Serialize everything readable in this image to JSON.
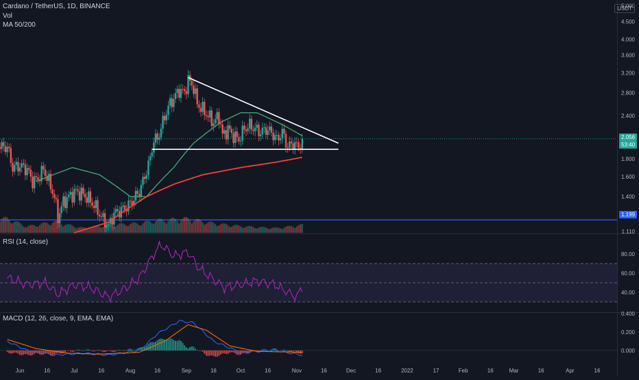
{
  "legend": {
    "symbol": "Cardano / TetherUS, 1D, BINANCE",
    "vol": "Vol",
    "ma": "MA 50/200",
    "rsi": "RSI (14, close)",
    "macd": "MACD (12, 26, close, 9, EMA, EMA)"
  },
  "currency_badge": "USDT",
  "price_tags": {
    "last": "2.056",
    "countdown": "53:40",
    "support": "1.199"
  },
  "colors": {
    "background": "#131722",
    "up": "#26a69a",
    "down": "#ef5350",
    "ma50": "#3fa672",
    "ma200": "#f44336",
    "trendline": "#ffffff",
    "support_line": "#2962ff",
    "rsi_line": "#9c27b0",
    "macd_line": "#2962ff",
    "signal_line": "#ff6d00"
  },
  "chart_data": [
    {
      "type": "candlestick",
      "title": "Cardano / TetherUS, 1D, BINANCE",
      "x_ticks": [
        "Jun",
        "16",
        "Jul",
        "16",
        "Aug",
        "16",
        "Sep",
        "16",
        "Oct",
        "16",
        "Nov",
        "16",
        "Dec",
        "16",
        "2022",
        "17",
        "Feb",
        "16",
        "Mar",
        "16",
        "Apr",
        "16"
      ],
      "y_ticks": [
        "1.110",
        "1.250",
        "1.400",
        "1.600",
        "1.800",
        "2.000",
        "2.400",
        "2.800",
        "3.200",
        "3.600",
        "4.000",
        "4.500",
        "5.000"
      ],
      "y_scale": "log",
      "ylim": [
        1.1,
        5.2
      ],
      "close_path": [
        [
          "2021-05-25",
          1.95
        ],
        [
          "2021-05-28",
          1.7
        ],
        [
          "2021-06-01",
          1.72
        ],
        [
          "2021-06-05",
          1.68
        ],
        [
          "2021-06-08",
          1.55
        ],
        [
          "2021-06-11",
          1.58
        ],
        [
          "2021-06-14",
          1.68
        ],
        [
          "2021-06-17",
          1.55
        ],
        [
          "2021-06-20",
          1.4
        ],
        [
          "2021-06-22",
          1.22
        ],
        [
          "2021-06-25",
          1.35
        ],
        [
          "2021-06-28",
          1.4
        ],
        [
          "2021-07-02",
          1.45
        ],
        [
          "2021-07-06",
          1.42
        ],
        [
          "2021-07-09",
          1.38
        ],
        [
          "2021-07-13",
          1.3
        ],
        [
          "2021-07-16",
          1.22
        ],
        [
          "2021-07-20",
          1.15
        ],
        [
          "2021-07-23",
          1.25
        ],
        [
          "2021-07-27",
          1.28
        ],
        [
          "2021-07-31",
          1.32
        ],
        [
          "2021-08-03",
          1.38
        ],
        [
          "2021-08-06",
          1.45
        ],
        [
          "2021-08-09",
          1.6
        ],
        [
          "2021-08-12",
          1.8
        ],
        [
          "2021-08-14",
          2.05
        ],
        [
          "2021-08-16",
          2.05
        ],
        [
          "2021-08-19",
          2.3
        ],
        [
          "2021-08-22",
          2.55
        ],
        [
          "2021-08-25",
          2.7
        ],
        [
          "2021-08-28",
          2.85
        ],
        [
          "2021-08-31",
          2.8
        ],
        [
          "2021-09-02",
          3.05
        ],
        [
          "2021-09-05",
          2.9
        ],
        [
          "2021-09-07",
          2.6
        ],
        [
          "2021-09-10",
          2.5
        ],
        [
          "2021-09-13",
          2.4
        ],
        [
          "2021-09-16",
          2.3
        ],
        [
          "2021-09-19",
          2.4
        ],
        [
          "2021-09-21",
          2.1
        ],
        [
          "2021-09-24",
          2.2
        ],
        [
          "2021-09-27",
          2.1
        ],
        [
          "2021-09-30",
          2.05
        ],
        [
          "2021-10-03",
          2.2
        ],
        [
          "2021-10-06",
          2.25
        ],
        [
          "2021-10-09",
          2.2
        ],
        [
          "2021-10-12",
          2.15
        ],
        [
          "2021-10-15",
          2.2
        ],
        [
          "2021-10-18",
          2.15
        ],
        [
          "2021-10-21",
          2.05
        ],
        [
          "2021-10-24",
          2.15
        ],
        [
          "2021-10-27",
          1.95
        ],
        [
          "2021-10-30",
          2.0
        ],
        [
          "2021-11-02",
          1.95
        ],
        [
          "2021-11-04",
          2.06
        ]
      ],
      "volume_path": [
        [
          "2021-05-25",
          0.9
        ],
        [
          "2021-06-05",
          0.4
        ],
        [
          "2021-06-20",
          0.7
        ],
        [
          "2021-07-06",
          0.3
        ],
        [
          "2021-07-20",
          0.5
        ],
        [
          "2021-08-06",
          0.6
        ],
        [
          "2021-08-16",
          0.8
        ],
        [
          "2021-09-02",
          0.9
        ],
        [
          "2021-09-16",
          0.6
        ],
        [
          "2021-10-03",
          0.4
        ],
        [
          "2021-10-21",
          0.3
        ],
        [
          "2021-11-04",
          0.5
        ]
      ],
      "ma50_path": [
        [
          "2021-06-10",
          1.55
        ],
        [
          "2021-06-30",
          1.7
        ],
        [
          "2021-07-15",
          1.62
        ],
        [
          "2021-08-01",
          1.4
        ],
        [
          "2021-08-10",
          1.4
        ],
        [
          "2021-08-25",
          1.7
        ],
        [
          "2021-09-05",
          2.0
        ],
        [
          "2021-09-20",
          2.3
        ],
        [
          "2021-10-01",
          2.45
        ],
        [
          "2021-10-10",
          2.45
        ],
        [
          "2021-10-25",
          2.25
        ],
        [
          "2021-11-04",
          2.1
        ]
      ],
      "ma200_path": [
        [
          "2021-07-01",
          1.1
        ],
        [
          "2021-07-20",
          1.18
        ],
        [
          "2021-08-10",
          1.4
        ],
        [
          "2021-08-25",
          1.52
        ],
        [
          "2021-09-10",
          1.62
        ],
        [
          "2021-10-01",
          1.7
        ],
        [
          "2021-10-20",
          1.76
        ],
        [
          "2021-11-04",
          1.82
        ]
      ],
      "drawings": {
        "descending_trendline": [
          [
            "2021-09-02",
            3.1
          ],
          [
            "2021-11-24",
            2.0
          ]
        ],
        "triangle_base": [
          [
            "2021-08-13",
            1.92
          ],
          [
            "2021-11-24",
            1.92
          ]
        ],
        "support_level": 1.199
      }
    },
    {
      "type": "line",
      "title": "RSI (14, close)",
      "y_ticks": [
        "40.00",
        "60.00",
        "80.00"
      ],
      "ylim": [
        20,
        100
      ],
      "bands": [
        30,
        50,
        70
      ],
      "path": [
        [
          "2021-05-25",
          55
        ],
        [
          "2021-06-05",
          48
        ],
        [
          "2021-06-15",
          50
        ],
        [
          "2021-06-22",
          38
        ],
        [
          "2021-07-01",
          48
        ],
        [
          "2021-07-10",
          45
        ],
        [
          "2021-07-20",
          35
        ],
        [
          "2021-07-30",
          45
        ],
        [
          "2021-08-06",
          55
        ],
        [
          "2021-08-14",
          80
        ],
        [
          "2021-08-18",
          90
        ],
        [
          "2021-08-25",
          78
        ],
        [
          "2021-09-02",
          82
        ],
        [
          "2021-09-08",
          65
        ],
        [
          "2021-09-15",
          55
        ],
        [
          "2021-09-22",
          45
        ],
        [
          "2021-10-01",
          48
        ],
        [
          "2021-10-10",
          52
        ],
        [
          "2021-10-20",
          48
        ],
        [
          "2021-10-27",
          40
        ],
        [
          "2021-11-01",
          35
        ],
        [
          "2021-11-04",
          46
        ]
      ]
    },
    {
      "type": "line",
      "title": "MACD (12, 26, close, 9, EMA, EMA)",
      "y_ticks": [
        "0.000",
        "0.200",
        "0.400"
      ],
      "ylim": [
        -0.12,
        0.4
      ],
      "macd_path": [
        [
          "2021-05-25",
          0.1
        ],
        [
          "2021-06-05",
          0.0
        ],
        [
          "2021-06-20",
          -0.05
        ],
        [
          "2021-07-06",
          -0.03
        ],
        [
          "2021-07-20",
          -0.05
        ],
        [
          "2021-08-06",
          0.0
        ],
        [
          "2021-08-16",
          0.18
        ],
        [
          "2021-08-28",
          0.32
        ],
        [
          "2021-09-05",
          0.3
        ],
        [
          "2021-09-16",
          0.1
        ],
        [
          "2021-10-01",
          -0.02
        ],
        [
          "2021-10-20",
          0.0
        ],
        [
          "2021-11-04",
          -0.05
        ]
      ],
      "signal_path": [
        [
          "2021-05-25",
          0.12
        ],
        [
          "2021-06-10",
          0.02
        ],
        [
          "2021-06-28",
          -0.03
        ],
        [
          "2021-07-15",
          -0.04
        ],
        [
          "2021-08-06",
          -0.02
        ],
        [
          "2021-08-20",
          0.1
        ],
        [
          "2021-09-02",
          0.28
        ],
        [
          "2021-09-12",
          0.22
        ],
        [
          "2021-09-25",
          0.05
        ],
        [
          "2021-10-10",
          -0.01
        ],
        [
          "2021-11-04",
          -0.02
        ]
      ]
    }
  ]
}
